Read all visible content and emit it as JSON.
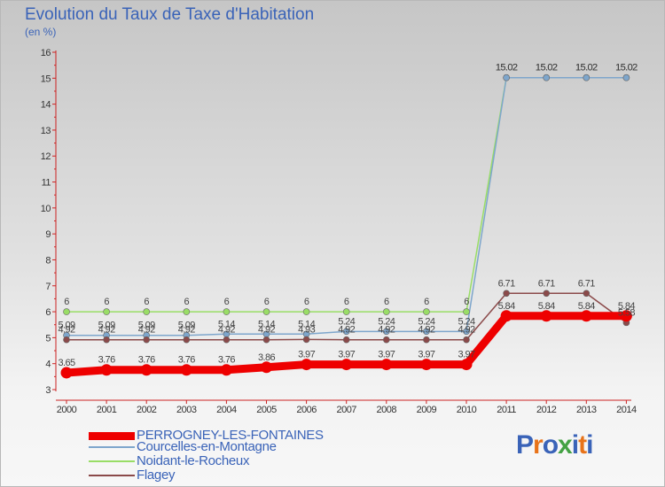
{
  "title": "Evolution du Taux de Taxe d'Habitation",
  "subtitle": "(en %)",
  "logo": {
    "text": "Proxiti",
    "colors": [
      "#3a63b8",
      "#e8731a",
      "#3a63b8",
      "#44a244",
      "#3a63b8",
      "#e8731a",
      "#3a63b8"
    ]
  },
  "chart_data": {
    "type": "line",
    "x": [
      "2000",
      "2001",
      "2002",
      "2003",
      "2004",
      "2005",
      "2006",
      "2007",
      "2008",
      "2009",
      "2010",
      "2011",
      "2012",
      "2013",
      "2014"
    ],
    "ylim": [
      3,
      16
    ],
    "yticks": [
      "3",
      "4",
      "5",
      "6",
      "7",
      "8",
      "9",
      "10",
      "11",
      "12",
      "13",
      "14",
      "15",
      "16"
    ],
    "grid": false,
    "legend_position": "bottom",
    "series": [
      {
        "name": "PERROGNEY-LES-FONTAINES",
        "color": "#ee0000",
        "values": [
          3.65,
          3.76,
          3.76,
          3.76,
          3.76,
          3.86,
          3.97,
          3.97,
          3.97,
          3.97,
          3.97,
          5.84,
          5.84,
          5.84,
          5.84
        ],
        "labels": [
          "3.65",
          "3.76",
          "3.76",
          "3.76",
          "3.76",
          "3.86",
          "3.97",
          "3.97",
          "3.97",
          "3.97",
          "3.97",
          "5.84",
          "5.84",
          "5.84",
          "5.84"
        ]
      },
      {
        "name": "Courcelles-en-Montagne",
        "color": "#7ea6cc",
        "values": [
          5.09,
          5.09,
          5.09,
          5.09,
          5.14,
          5.14,
          5.14,
          5.24,
          5.24,
          5.24,
          5.24,
          15.02,
          15.02,
          15.02,
          15.02
        ],
        "labels": [
          "5.09",
          "5.09",
          "5.09",
          "5.09",
          "5.14",
          "5.14",
          "5.14",
          "5.24",
          "5.24",
          "5.24",
          "5.24",
          "15.02",
          "15.02",
          "15.02",
          "15.02"
        ]
      },
      {
        "name": "Noidant-le-Rocheux",
        "color": "#99dd66",
        "values": [
          6,
          6,
          6,
          6,
          6,
          6,
          6,
          6,
          6,
          6,
          6,
          15.02,
          15.02,
          15.02,
          15.02
        ],
        "labels": [
          "6",
          "6",
          "6",
          "6",
          "6",
          "6",
          "6",
          "6",
          "6",
          "6",
          "6",
          "15.02",
          "15.02",
          "15.02",
          "15.02"
        ]
      },
      {
        "name": "Flagey",
        "color": "#8b4a4a",
        "values": [
          4.92,
          4.92,
          4.92,
          4.92,
          4.92,
          4.92,
          4.93,
          4.92,
          4.92,
          4.92,
          4.92,
          6.71,
          6.71,
          6.71,
          5.58
        ],
        "labels": [
          "4.92",
          "4.92",
          "4.92",
          "4.92",
          "4.92",
          "4.92",
          "4.93",
          "4.92",
          "4.92",
          "4.92",
          "4.92",
          "6.71",
          "6.71",
          "6.71",
          "5.58"
        ]
      }
    ]
  }
}
